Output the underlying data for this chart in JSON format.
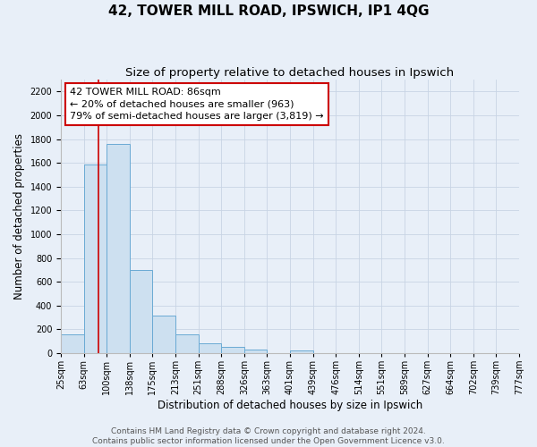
{
  "title": "42, TOWER MILL ROAD, IPSWICH, IP1 4QG",
  "subtitle": "Size of property relative to detached houses in Ipswich",
  "xlabel": "Distribution of detached houses by size in Ipswich",
  "ylabel": "Number of detached properties",
  "footer_lines": [
    "Contains HM Land Registry data © Crown copyright and database right 2024.",
    "Contains public sector information licensed under the Open Government Licence v3.0."
  ],
  "bin_labels": [
    "25sqm",
    "63sqm",
    "100sqm",
    "138sqm",
    "175sqm",
    "213sqm",
    "251sqm",
    "288sqm",
    "326sqm",
    "363sqm",
    "401sqm",
    "439sqm",
    "476sqm",
    "514sqm",
    "551sqm",
    "589sqm",
    "627sqm",
    "664sqm",
    "702sqm",
    "739sqm",
    "777sqm"
  ],
  "bar_values": [
    160,
    1590,
    1760,
    700,
    315,
    155,
    85,
    50,
    30,
    0,
    20,
    0,
    0,
    0,
    0,
    0,
    0,
    0,
    0,
    0
  ],
  "bar_color": "#cde0f0",
  "bar_edge_color": "#6aaad4",
  "red_line_x": 1.63,
  "red_line_color": "#cc0000",
  "annotation_text": "42 TOWER MILL ROAD: 86sqm\n← 20% of detached houses are smaller (963)\n79% of semi-detached houses are larger (3,819) →",
  "annotation_box_color": "#ffffff",
  "annotation_box_edge": "#cc0000",
  "ylim": [
    0,
    2300
  ],
  "yticks": [
    0,
    200,
    400,
    600,
    800,
    1000,
    1200,
    1400,
    1600,
    1800,
    2000,
    2200
  ],
  "grid_color": "#c8d4e4",
  "background_color": "#e8eff8",
  "title_fontsize": 11,
  "subtitle_fontsize": 9.5,
  "axis_label_fontsize": 8.5,
  "tick_fontsize": 7,
  "annotation_fontsize": 8,
  "footer_fontsize": 6.5
}
